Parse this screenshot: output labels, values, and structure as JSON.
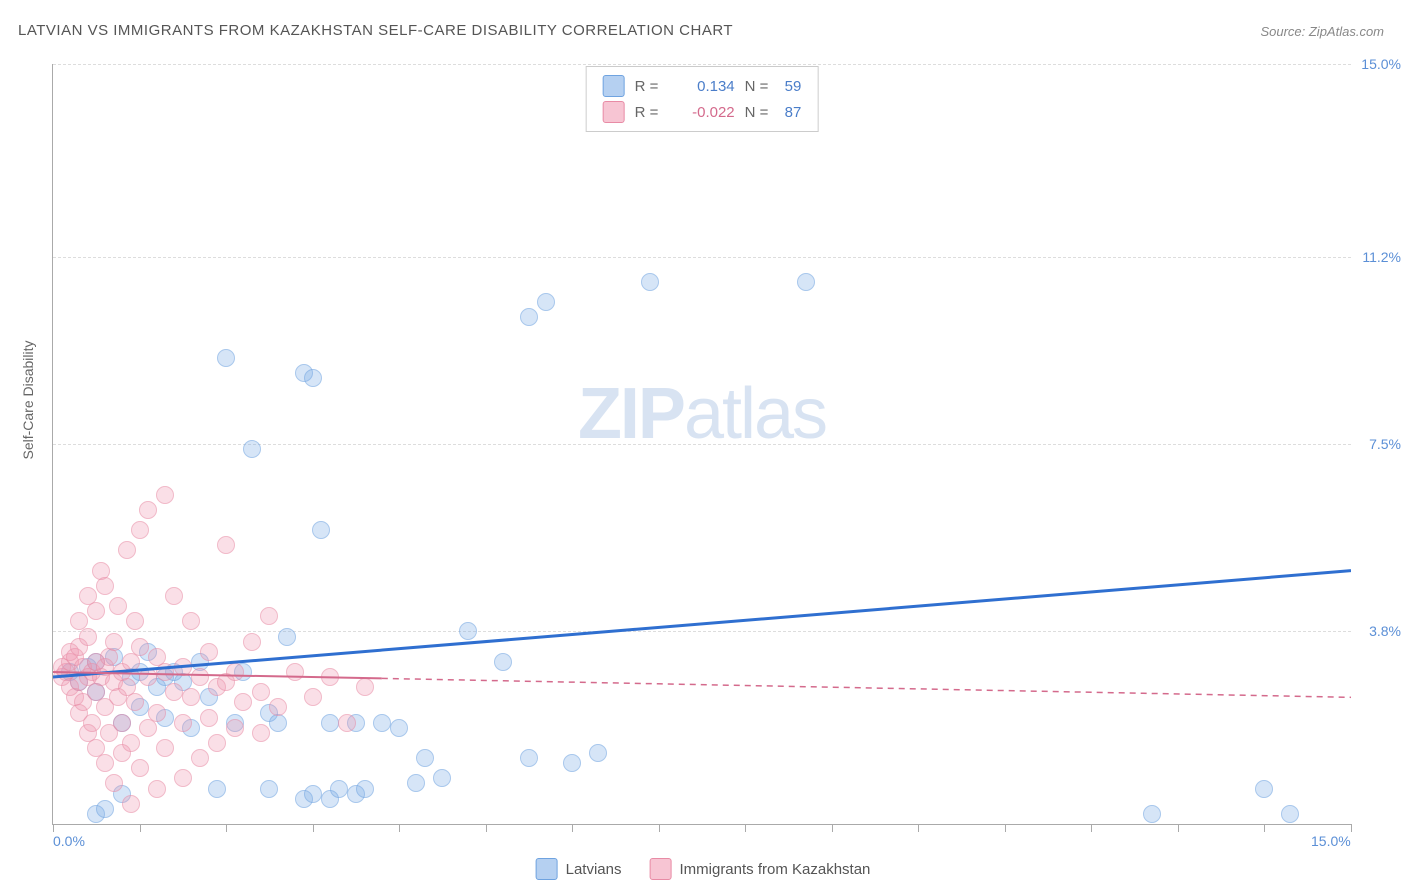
{
  "title": "LATVIAN VS IMMIGRANTS FROM KAZAKHSTAN SELF-CARE DISABILITY CORRELATION CHART",
  "source": "Source: ZipAtlas.com",
  "y_axis_label": "Self-Care Disability",
  "watermark": {
    "part1": "ZIP",
    "part2": "atlas"
  },
  "chart": {
    "type": "scatter",
    "xlim": [
      0,
      15
    ],
    "ylim": [
      0,
      15
    ],
    "x_ticks_minor": [
      0,
      1,
      2,
      3,
      4,
      5,
      6,
      7,
      8,
      9,
      10,
      11,
      12,
      13,
      14,
      15
    ],
    "x_tick_labels": [
      {
        "v": 0,
        "label": "0.0%"
      },
      {
        "v": 15,
        "label": "15.0%"
      }
    ],
    "y_gridlines": [
      {
        "v": 3.8,
        "label": "3.8%"
      },
      {
        "v": 7.5,
        "label": "7.5%"
      },
      {
        "v": 11.2,
        "label": "11.2%"
      },
      {
        "v": 15.0,
        "label": "15.0%"
      }
    ],
    "background_color": "#ffffff",
    "grid_color": "#dddddd",
    "axis_color": "#aaaaaa",
    "tick_label_color": "#5b8fd6",
    "series": [
      {
        "name": "Latvians",
        "color_fill": "rgba(120,170,230,0.5)",
        "color_stroke": "#6fa3e0",
        "marker_class": "blue",
        "R": "0.134",
        "N": "59",
        "trend": {
          "x1": 0,
          "y1": 2.9,
          "x2": 15,
          "y2": 5.0,
          "solid_until_x": 15,
          "stroke": "#2f6fd0",
          "stroke_width": 3
        },
        "points": [
          [
            0.2,
            3.0
          ],
          [
            0.3,
            2.8
          ],
          [
            0.4,
            3.1
          ],
          [
            0.5,
            2.6
          ],
          [
            0.5,
            3.2
          ],
          [
            0.5,
            0.2
          ],
          [
            0.7,
            3.3
          ],
          [
            0.8,
            2.0
          ],
          [
            0.9,
            2.9
          ],
          [
            1.0,
            3.0
          ],
          [
            1.0,
            2.3
          ],
          [
            1.1,
            3.4
          ],
          [
            1.2,
            2.7
          ],
          [
            1.3,
            2.9
          ],
          [
            1.3,
            2.1
          ],
          [
            1.4,
            3.0
          ],
          [
            1.5,
            2.8
          ],
          [
            1.6,
            1.9
          ],
          [
            1.7,
            3.2
          ],
          [
            1.8,
            2.5
          ],
          [
            1.9,
            0.7
          ],
          [
            2.0,
            9.2
          ],
          [
            2.1,
            2.0
          ],
          [
            2.2,
            3.0
          ],
          [
            2.3,
            7.4
          ],
          [
            2.5,
            2.2
          ],
          [
            2.5,
            0.7
          ],
          [
            2.6,
            2.0
          ],
          [
            2.7,
            3.7
          ],
          [
            2.9,
            8.9
          ],
          [
            2.9,
            0.5
          ],
          [
            3.0,
            8.8
          ],
          [
            3.0,
            0.6
          ],
          [
            3.1,
            5.8
          ],
          [
            3.2,
            2.0
          ],
          [
            3.2,
            0.5
          ],
          [
            3.3,
            0.7
          ],
          [
            3.5,
            0.6
          ],
          [
            3.5,
            2.0
          ],
          [
            3.6,
            0.7
          ],
          [
            3.8,
            2.0
          ],
          [
            4.0,
            1.9
          ],
          [
            4.2,
            0.8
          ],
          [
            4.3,
            1.3
          ],
          [
            4.5,
            0.9
          ],
          [
            4.8,
            3.8
          ],
          [
            5.2,
            3.2
          ],
          [
            5.5,
            10.0
          ],
          [
            5.5,
            1.3
          ],
          [
            5.7,
            10.3
          ],
          [
            6.0,
            1.2
          ],
          [
            6.3,
            1.4
          ],
          [
            6.9,
            10.7
          ],
          [
            8.7,
            10.7
          ],
          [
            12.7,
            0.2
          ],
          [
            14.0,
            0.7
          ],
          [
            14.3,
            0.2
          ],
          [
            0.6,
            0.3
          ],
          [
            0.8,
            0.6
          ]
        ]
      },
      {
        "name": "Immigrants from Kazakhstan",
        "color_fill": "rgba(240,150,175,0.5)",
        "color_stroke": "#e88ba5",
        "marker_class": "pink",
        "R": "-0.022",
        "N": "87",
        "trend": {
          "x1": 0,
          "y1": 3.0,
          "x2": 15,
          "y2": 2.5,
          "solid_until_x": 3.8,
          "stroke": "#d46a8c",
          "stroke_width": 2
        },
        "points": [
          [
            0.1,
            2.9
          ],
          [
            0.1,
            3.1
          ],
          [
            0.15,
            3.0
          ],
          [
            0.2,
            2.7
          ],
          [
            0.2,
            3.2
          ],
          [
            0.2,
            3.4
          ],
          [
            0.25,
            2.5
          ],
          [
            0.25,
            3.3
          ],
          [
            0.3,
            2.8
          ],
          [
            0.3,
            3.5
          ],
          [
            0.3,
            2.2
          ],
          [
            0.3,
            4.0
          ],
          [
            0.35,
            3.1
          ],
          [
            0.35,
            2.4
          ],
          [
            0.4,
            2.9
          ],
          [
            0.4,
            3.7
          ],
          [
            0.4,
            1.8
          ],
          [
            0.4,
            4.5
          ],
          [
            0.45,
            3.0
          ],
          [
            0.45,
            2.0
          ],
          [
            0.5,
            3.2
          ],
          [
            0.5,
            2.6
          ],
          [
            0.5,
            1.5
          ],
          [
            0.5,
            4.2
          ],
          [
            0.55,
            2.9
          ],
          [
            0.55,
            5.0
          ],
          [
            0.6,
            3.1
          ],
          [
            0.6,
            2.3
          ],
          [
            0.6,
            1.2
          ],
          [
            0.6,
            4.7
          ],
          [
            0.65,
            3.3
          ],
          [
            0.65,
            1.8
          ],
          [
            0.7,
            2.8
          ],
          [
            0.7,
            3.6
          ],
          [
            0.7,
            0.8
          ],
          [
            0.75,
            2.5
          ],
          [
            0.75,
            4.3
          ],
          [
            0.8,
            3.0
          ],
          [
            0.8,
            2.0
          ],
          [
            0.8,
            1.4
          ],
          [
            0.85,
            5.4
          ],
          [
            0.85,
            2.7
          ],
          [
            0.9,
            3.2
          ],
          [
            0.9,
            1.6
          ],
          [
            0.9,
            0.4
          ],
          [
            0.95,
            4.0
          ],
          [
            0.95,
            2.4
          ],
          [
            1.0,
            3.5
          ],
          [
            1.0,
            5.8
          ],
          [
            1.0,
            1.1
          ],
          [
            1.1,
            2.9
          ],
          [
            1.1,
            6.2
          ],
          [
            1.1,
            1.9
          ],
          [
            1.2,
            3.3
          ],
          [
            1.2,
            2.2
          ],
          [
            1.2,
            0.7
          ],
          [
            1.3,
            6.5
          ],
          [
            1.3,
            3.0
          ],
          [
            1.3,
            1.5
          ],
          [
            1.4,
            2.6
          ],
          [
            1.4,
            4.5
          ],
          [
            1.5,
            3.1
          ],
          [
            1.5,
            2.0
          ],
          [
            1.5,
            0.9
          ],
          [
            1.6,
            2.5
          ],
          [
            1.6,
            4.0
          ],
          [
            1.7,
            2.9
          ],
          [
            1.7,
            1.3
          ],
          [
            1.8,
            3.4
          ],
          [
            1.8,
            2.1
          ],
          [
            1.9,
            2.7
          ],
          [
            1.9,
            1.6
          ],
          [
            2.0,
            5.5
          ],
          [
            2.0,
            2.8
          ],
          [
            2.1,
            3.0
          ],
          [
            2.1,
            1.9
          ],
          [
            2.2,
            2.4
          ],
          [
            2.3,
            3.6
          ],
          [
            2.4,
            2.6
          ],
          [
            2.4,
            1.8
          ],
          [
            2.5,
            4.1
          ],
          [
            2.6,
            2.3
          ],
          [
            2.8,
            3.0
          ],
          [
            3.0,
            2.5
          ],
          [
            3.2,
            2.9
          ],
          [
            3.4,
            2.0
          ],
          [
            3.6,
            2.7
          ]
        ]
      }
    ],
    "legend_bottom": [
      {
        "swatch": "blue",
        "label": "Latvians"
      },
      {
        "swatch": "pink",
        "label": "Immigrants from Kazakhstan"
      }
    ]
  }
}
